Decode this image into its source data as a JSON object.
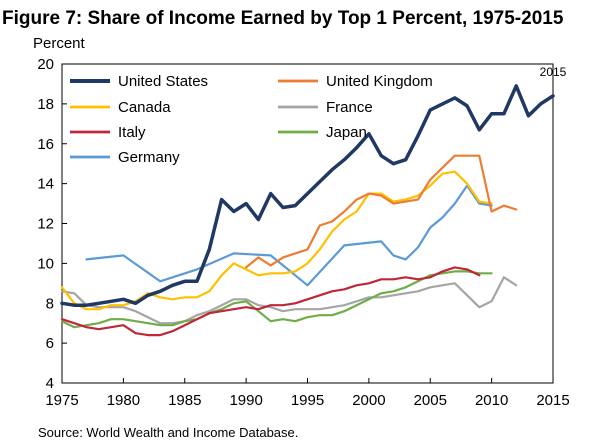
{
  "header": {
    "title": "Figure 7: Share of Income Earned by Top 1 Percent, 1975-2015",
    "unit": "Percent"
  },
  "footer": {
    "source": "Source: World Wealth and Income Database."
  },
  "chart_data": {
    "type": "line",
    "title": "Figure 7: Share of Income Earned by Top 1 Percent, 1975-2015",
    "ylabel": "Percent",
    "xlabel": "",
    "xlim": [
      1975,
      2015
    ],
    "ylim": [
      4,
      20
    ],
    "x_ticks": [
      1975,
      1980,
      1985,
      1990,
      1995,
      2000,
      2005,
      2010,
      2015
    ],
    "y_ticks": [
      4,
      6,
      8,
      10,
      12,
      14,
      16,
      18,
      20
    ],
    "grid": false,
    "legend": "top-left",
    "annotations": [
      {
        "text": "2015",
        "x": 2015,
        "y": 19.4
      }
    ],
    "series": [
      {
        "name": "United States",
        "color": "#1f3864",
        "width": 3.5,
        "x": [
          1975,
          1976,
          1977,
          1978,
          1979,
          1980,
          1981,
          1982,
          1983,
          1984,
          1985,
          1986,
          1987,
          1988,
          1989,
          1990,
          1991,
          1992,
          1993,
          1994,
          1995,
          1996,
          1997,
          1998,
          1999,
          2000,
          2001,
          2002,
          2003,
          2004,
          2005,
          2006,
          2007,
          2008,
          2009,
          2010,
          2011,
          2012,
          2013,
          2014,
          2015
        ],
        "y": [
          8.0,
          7.9,
          7.9,
          8.0,
          8.1,
          8.2,
          8.0,
          8.4,
          8.6,
          8.9,
          9.1,
          9.1,
          10.7,
          13.2,
          12.6,
          13.0,
          12.2,
          13.5,
          12.8,
          12.9,
          13.5,
          14.1,
          14.7,
          15.2,
          15.8,
          16.5,
          15.4,
          15.0,
          15.2,
          16.4,
          17.7,
          18.0,
          18.3,
          17.9,
          16.7,
          17.5,
          17.5,
          18.9,
          17.4,
          18.0,
          18.4
        ]
      },
      {
        "name": "United Kingdom",
        "color": "#ed7d31",
        "width": 2.2,
        "x": [
          1990,
          1991,
          1992,
          1993,
          1994,
          1995,
          1996,
          1997,
          1998,
          1999,
          2000,
          2001,
          2002,
          2003,
          2004,
          2005,
          2006,
          2007,
          2008,
          2009,
          2010,
          2011,
          2012
        ],
        "y": [
          9.8,
          10.3,
          9.9,
          10.3,
          10.5,
          10.7,
          11.9,
          12.1,
          12.6,
          13.2,
          13.5,
          13.4,
          13.0,
          13.1,
          13.2,
          14.2,
          14.8,
          15.4,
          15.4,
          15.4,
          12.6,
          12.9,
          12.7
        ]
      },
      {
        "name": "Canada",
        "color": "#ffc000",
        "width": 2.2,
        "x": [
          1975,
          1976,
          1977,
          1978,
          1979,
          1980,
          1981,
          1982,
          1983,
          1984,
          1985,
          1986,
          1987,
          1988,
          1989,
          1990,
          1991,
          1992,
          1993,
          1994,
          1995,
          1996,
          1997,
          1998,
          1999,
          2000,
          2001,
          2002,
          2003,
          2004,
          2005,
          2006,
          2007,
          2008,
          2009,
          2010
        ],
        "y": [
          8.8,
          8.0,
          7.7,
          7.7,
          7.9,
          7.9,
          8.1,
          8.5,
          8.3,
          8.2,
          8.3,
          8.3,
          8.6,
          9.4,
          10.0,
          9.7,
          9.4,
          9.5,
          9.5,
          9.6,
          10.0,
          10.7,
          11.6,
          12.2,
          12.6,
          13.5,
          13.5,
          13.1,
          13.2,
          13.4,
          13.9,
          14.5,
          14.6,
          14.0,
          13.1,
          13.0
        ]
      },
      {
        "name": "France",
        "color": "#a5a5a5",
        "width": 2.2,
        "x": [
          1975,
          1976,
          1977,
          1978,
          1979,
          1980,
          1981,
          1982,
          1983,
          1984,
          1985,
          1986,
          1987,
          1988,
          1989,
          1990,
          1991,
          1992,
          1993,
          1994,
          1995,
          1996,
          1997,
          1998,
          1999,
          2000,
          2001,
          2002,
          2003,
          2004,
          2005,
          2006,
          2007,
          2008,
          2009,
          2010,
          2011,
          2012
        ],
        "y": [
          8.6,
          8.5,
          7.9,
          7.8,
          7.8,
          7.8,
          7.6,
          7.3,
          7.0,
          7.0,
          7.1,
          7.4,
          7.6,
          7.9,
          8.2,
          8.2,
          7.9,
          7.8,
          7.6,
          7.7,
          7.7,
          7.7,
          7.8,
          7.9,
          8.1,
          8.3,
          8.3,
          8.4,
          8.5,
          8.6,
          8.8,
          8.9,
          9.0,
          8.4,
          7.8,
          8.1,
          9.3,
          8.9
        ]
      },
      {
        "name": "Italy",
        "color": "#c0273a",
        "width": 2.2,
        "x": [
          1975,
          1976,
          1977,
          1978,
          1979,
          1980,
          1981,
          1982,
          1983,
          1984,
          1985,
          1986,
          1987,
          1988,
          1989,
          1990,
          1991,
          1992,
          1993,
          1994,
          1995,
          1996,
          1997,
          1998,
          1999,
          2000,
          2001,
          2002,
          2003,
          2004,
          2005,
          2006,
          2007,
          2008,
          2009
        ],
        "y": [
          7.2,
          7.0,
          6.8,
          6.7,
          6.8,
          6.9,
          6.5,
          6.4,
          6.4,
          6.6,
          6.9,
          7.2,
          7.5,
          7.6,
          7.7,
          7.8,
          7.7,
          7.9,
          7.9,
          8.0,
          8.2,
          8.4,
          8.6,
          8.7,
          8.9,
          9.0,
          9.2,
          9.2,
          9.3,
          9.2,
          9.3,
          9.6,
          9.8,
          9.7,
          9.4
        ]
      },
      {
        "name": "Japan",
        "color": "#70ad47",
        "width": 2.2,
        "x": [
          1975,
          1976,
          1977,
          1978,
          1979,
          1980,
          1981,
          1982,
          1983,
          1984,
          1985,
          1986,
          1987,
          1988,
          1989,
          1990,
          1991,
          1992,
          1993,
          1994,
          1995,
          1996,
          1997,
          1998,
          1999,
          2000,
          2001,
          2002,
          2003,
          2004,
          2005,
          2006,
          2007,
          2008,
          2009,
          2010
        ],
        "y": [
          7.1,
          6.8,
          6.9,
          7.0,
          7.2,
          7.2,
          7.1,
          7.0,
          6.9,
          6.9,
          7.1,
          7.2,
          7.5,
          7.7,
          8.0,
          8.1,
          7.6,
          7.1,
          7.2,
          7.1,
          7.3,
          7.4,
          7.4,
          7.6,
          7.9,
          8.2,
          8.5,
          8.6,
          8.8,
          9.1,
          9.4,
          9.5,
          9.6,
          9.6,
          9.5,
          9.5
        ]
      },
      {
        "name": "Germany",
        "color": "#5b9bd5",
        "width": 2.2,
        "x": [
          1977,
          1980,
          1983,
          1986,
          1989,
          1992,
          1995,
          1998,
          2001,
          2002,
          2003,
          2004,
          2005,
          2006,
          2007,
          2008,
          2009,
          2010
        ],
        "y": [
          10.2,
          10.4,
          9.1,
          9.7,
          10.5,
          10.4,
          8.9,
          10.9,
          11.1,
          10.4,
          10.2,
          10.8,
          11.8,
          12.3,
          13.0,
          13.9,
          13.0,
          12.9
        ]
      }
    ]
  }
}
